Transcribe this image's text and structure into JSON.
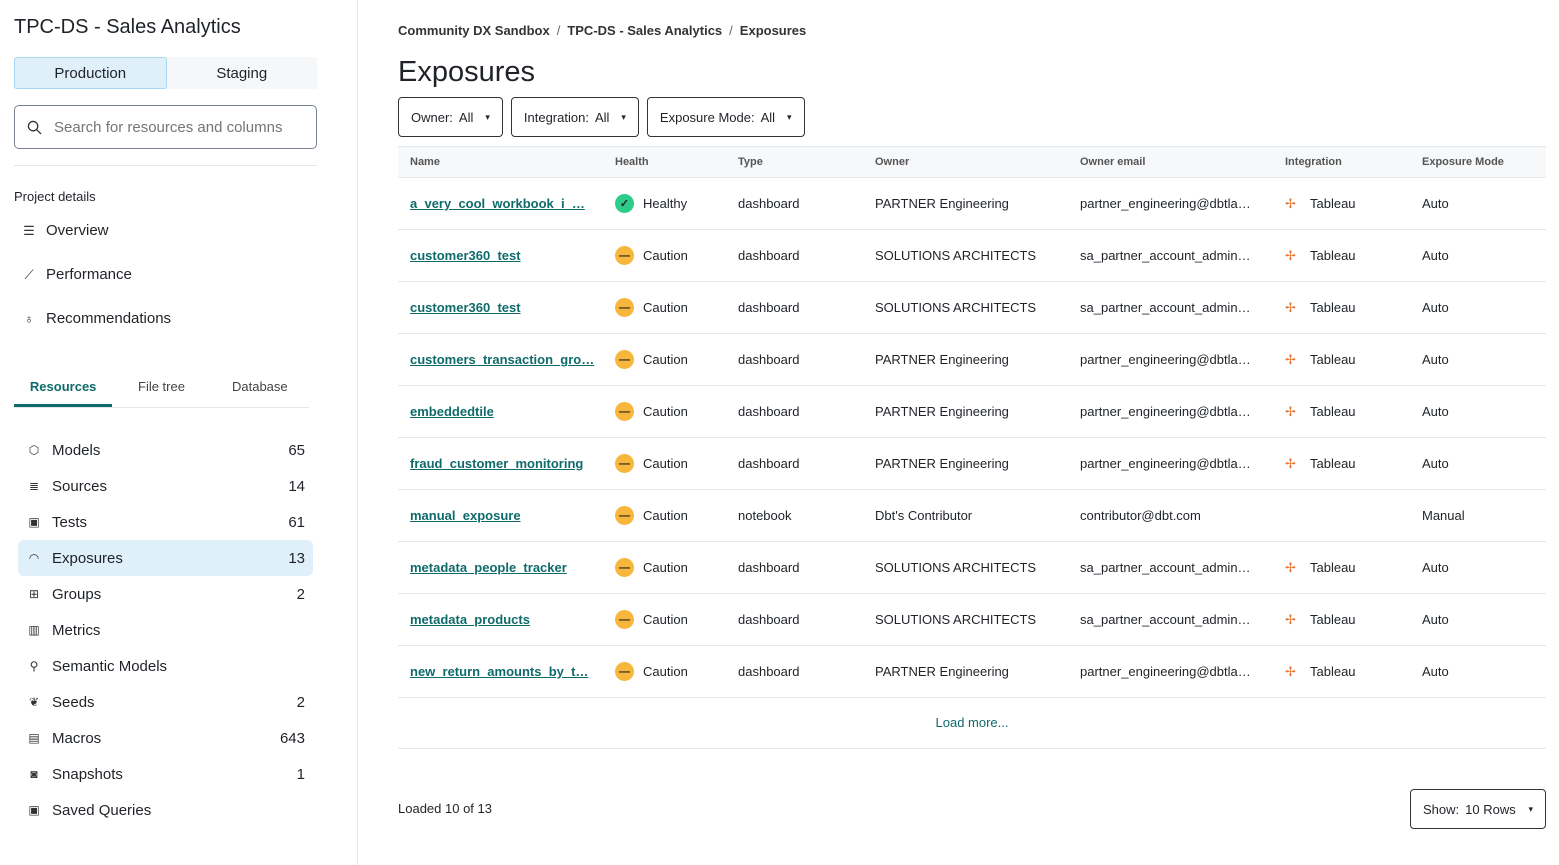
{
  "sidebar": {
    "title": "TPC-DS - Sales Analytics",
    "env": [
      "Production",
      "Staging"
    ],
    "search_placeholder": "Search for resources and columns",
    "project_details": "Project details",
    "nav": [
      {
        "label": "Overview",
        "icon": "list-icon"
      },
      {
        "label": "Performance",
        "icon": "chart-line-icon"
      },
      {
        "label": "Recommendations",
        "icon": "lightbulb-icon"
      }
    ],
    "tabs": [
      "Resources",
      "File tree",
      "Database"
    ],
    "resources": [
      {
        "label": "Models",
        "count": "65",
        "icon": "cube-icon"
      },
      {
        "label": "Sources",
        "count": "14",
        "icon": "database-icon"
      },
      {
        "label": "Tests",
        "count": "61",
        "icon": "clipboard-icon"
      },
      {
        "label": "Exposures",
        "count": "13",
        "icon": "gauge-icon"
      },
      {
        "label": "Groups",
        "count": "2",
        "icon": "grid-icon"
      },
      {
        "label": "Metrics",
        "count": "",
        "icon": "bar-chart-icon"
      },
      {
        "label": "Semantic Models",
        "count": "",
        "icon": "graph-icon"
      },
      {
        "label": "Seeds",
        "count": "2",
        "icon": "seedling-icon"
      },
      {
        "label": "Macros",
        "count": "643",
        "icon": "document-icon"
      },
      {
        "label": "Snapshots",
        "count": "1",
        "icon": "camera-icon"
      },
      {
        "label": "Saved Queries",
        "count": "",
        "icon": "save-icon"
      }
    ]
  },
  "main": {
    "breadcrumb": [
      "Community DX Sandbox",
      "TPC-DS - Sales Analytics",
      "Exposures"
    ],
    "title": "Exposures",
    "filters": [
      {
        "label": "Owner:",
        "value": "All"
      },
      {
        "label": "Integration:",
        "value": "All"
      },
      {
        "label": "Exposure Mode:",
        "value": "All"
      }
    ],
    "columns": [
      "Name",
      "Health",
      "Type",
      "Owner",
      "Owner email",
      "Integration",
      "Exposure Mode"
    ],
    "rows": [
      [
        "a_very_cool_workbook_i_…",
        "Healthy",
        "dashboard",
        "PARTNER Engineering",
        "partner_engineering@dbtla…",
        "Tableau",
        "Auto"
      ],
      [
        "customer360_test",
        "Caution",
        "dashboard",
        "SOLUTIONS ARCHITECTS",
        "sa_partner_account_admin…",
        "Tableau",
        "Auto"
      ],
      [
        "customer360_test",
        "Caution",
        "dashboard",
        "SOLUTIONS ARCHITECTS",
        "sa_partner_account_admin…",
        "Tableau",
        "Auto"
      ],
      [
        "customers_transaction_gro…",
        "Caution",
        "dashboard",
        "PARTNER Engineering",
        "partner_engineering@dbtla…",
        "Tableau",
        "Auto"
      ],
      [
        "embeddedtile",
        "Caution",
        "dashboard",
        "PARTNER Engineering",
        "partner_engineering@dbtla…",
        "Tableau",
        "Auto"
      ],
      [
        "fraud_customer_monitoring",
        "Caution",
        "dashboard",
        "PARTNER Engineering",
        "partner_engineering@dbtla…",
        "Tableau",
        "Auto"
      ],
      [
        "manual_exposure",
        "Caution",
        "notebook",
        "Dbt's Contributor",
        "contributor@dbt.com",
        "",
        "Manual"
      ],
      [
        "metadata_people_tracker",
        "Caution",
        "dashboard",
        "SOLUTIONS ARCHITECTS",
        "sa_partner_account_admin…",
        "Tableau",
        "Auto"
      ],
      [
        "metadata_products",
        "Caution",
        "dashboard",
        "SOLUTIONS ARCHITECTS",
        "sa_partner_account_admin…",
        "Tableau",
        "Auto"
      ],
      [
        "new_return_amounts_by_t…",
        "Caution",
        "dashboard",
        "PARTNER Engineering",
        "partner_engineering@dbtla…",
        "Tableau",
        "Auto"
      ]
    ],
    "load_more": "Load more...",
    "loaded": "Loaded 10 of 13",
    "show_label": "Show:",
    "show_value": "10 Rows"
  },
  "colors": {
    "accent": "#0f6b6b",
    "healthy": "#2ecc8a",
    "caution": "#f6b73c",
    "selected": "#dff0fb"
  }
}
